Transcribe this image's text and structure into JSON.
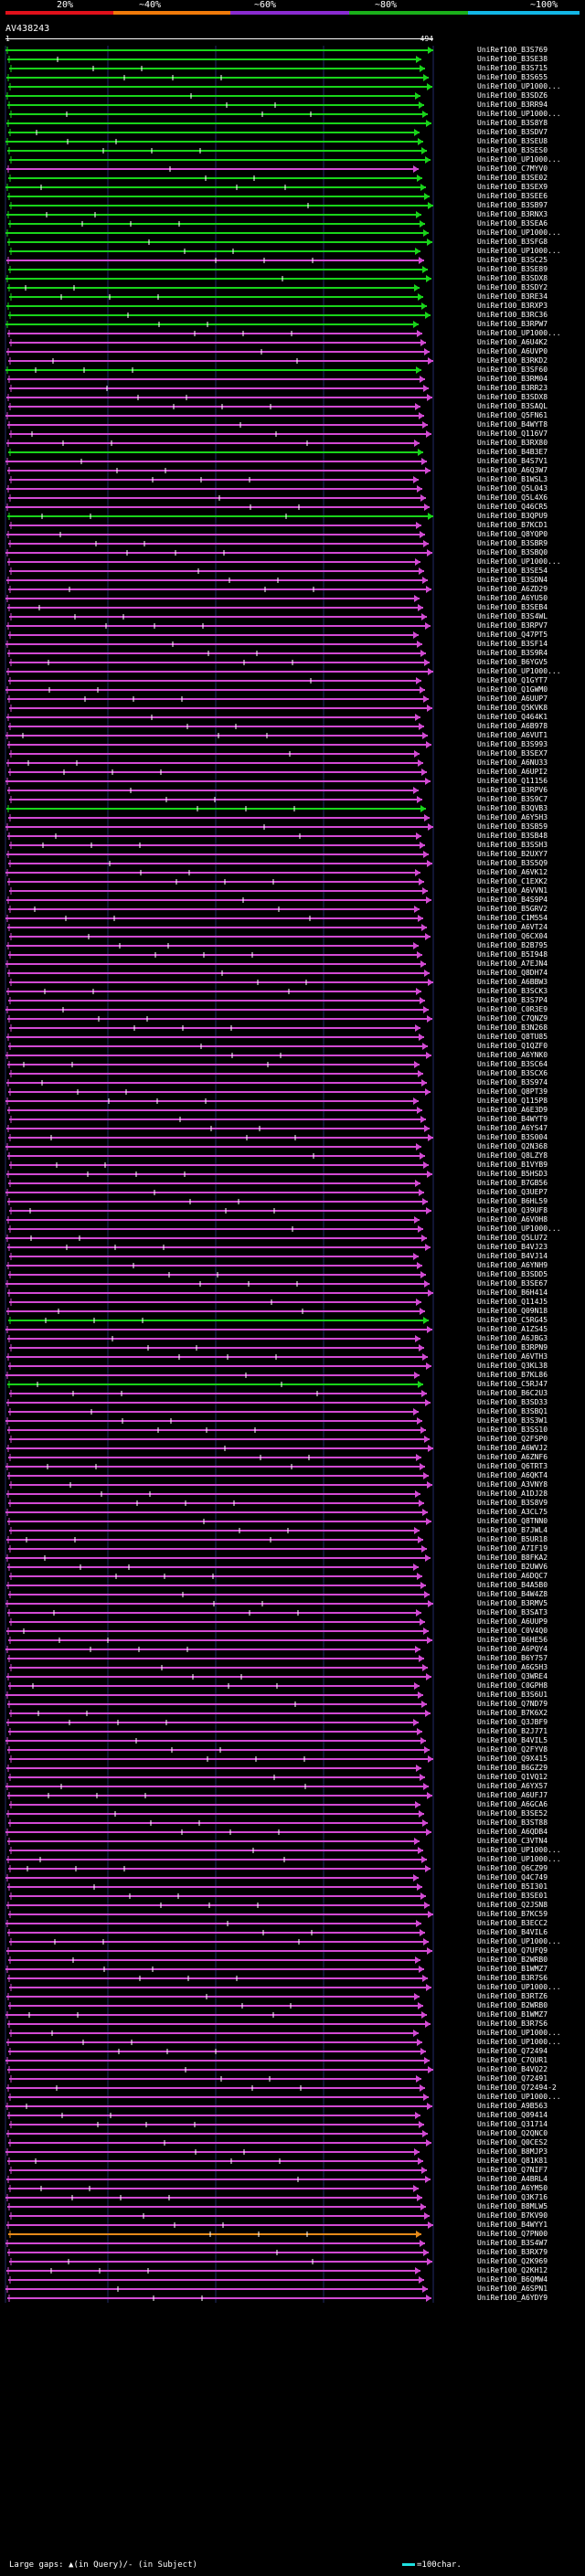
{
  "scale": {
    "labels": [
      "20%",
      "~40%",
      "~60%",
      "~80%",
      "~100%"
    ],
    "colors": [
      "#e0101a",
      "#f07a0a",
      "#8a2bd0",
      "#1ab01a",
      "#12b6e6"
    ]
  },
  "query_id": "AV438243",
  "ruler": {
    "start": "1",
    "end": "494"
  },
  "footer": {
    "legend": "Large gaps: ▲(in Query)/- (in Subject)",
    "scale_note": "=100char."
  },
  "hit_colors": {
    "green": "#19d41a",
    "magenta": "#d24ad3",
    "orange": "#e58a1a"
  },
  "hits": [
    {
      "label": "UniRef100_B3S769",
      "color": "green"
    },
    {
      "label": "UniRef100_B3SE38",
      "color": "green"
    },
    {
      "label": "UniRef100_B3S715",
      "color": "green"
    },
    {
      "label": "UniRef100_B3S655",
      "color": "green"
    },
    {
      "label": "UniRef100_UP1000...",
      "color": "green"
    },
    {
      "label": "UniRef100_B3SDZ6",
      "color": "green"
    },
    {
      "label": "UniRef100_B3RR94",
      "color": "green"
    },
    {
      "label": "UniRef100_UP1000...",
      "color": "green"
    },
    {
      "label": "UniRef100_B3S8Y8",
      "color": "green"
    },
    {
      "label": "UniRef100_B3SDV7",
      "color": "green"
    },
    {
      "label": "UniRef100_B3SEU8",
      "color": "green"
    },
    {
      "label": "UniRef100_B3SES0",
      "color": "green"
    },
    {
      "label": "UniRef100_UP1000...",
      "color": "green"
    },
    {
      "label": "UniRef100_C7MYV0",
      "color": "magenta"
    },
    {
      "label": "UniRef100_B3SE02",
      "color": "green"
    },
    {
      "label": "UniRef100_B3SEX9",
      "color": "green"
    },
    {
      "label": "UniRef100_B3SEE6",
      "color": "green"
    },
    {
      "label": "UniRef100_B3SB97",
      "color": "green"
    },
    {
      "label": "UniRef100_B3RNX3",
      "color": "green"
    },
    {
      "label": "UniRef100_B3SEA6",
      "color": "green"
    },
    {
      "label": "UniRef100_UP1000...",
      "color": "green"
    },
    {
      "label": "UniRef100_B3SFG8",
      "color": "green"
    },
    {
      "label": "UniRef100_UP1000...",
      "color": "green"
    },
    {
      "label": "UniRef100_B3SC25",
      "color": "magenta"
    },
    {
      "label": "UniRef100_B3SE89",
      "color": "green"
    },
    {
      "label": "UniRef100_B3SDX8",
      "color": "green"
    },
    {
      "label": "UniRef100_B3SDY2",
      "color": "green"
    },
    {
      "label": "UniRef100_B3RE34",
      "color": "green"
    },
    {
      "label": "UniRef100_B3RXP3",
      "color": "green"
    },
    {
      "label": "UniRef100_B3RC36",
      "color": "green"
    },
    {
      "label": "UniRef100_B3RPW7",
      "color": "green"
    },
    {
      "label": "UniRef100_UP1000...",
      "color": "magenta"
    },
    {
      "label": "UniRef100_A6U4K2",
      "color": "magenta"
    },
    {
      "label": "UniRef100_A6UVP0",
      "color": "magenta"
    },
    {
      "label": "UniRef100_B3RKD2",
      "color": "magenta"
    },
    {
      "label": "UniRef100_B3SF60",
      "color": "green"
    },
    {
      "label": "UniRef100_B3RM04",
      "color": "magenta"
    },
    {
      "label": "UniRef100_B3RR23",
      "color": "magenta"
    },
    {
      "label": "UniRef100_B3SDX8",
      "color": "magenta"
    },
    {
      "label": "UniRef100_B3SAQL",
      "color": "magenta"
    },
    {
      "label": "UniRef100_Q5FN61",
      "color": "magenta"
    },
    {
      "label": "UniRef100_B4WYT8",
      "color": "magenta"
    },
    {
      "label": "UniRef100_Q116V7",
      "color": "magenta"
    },
    {
      "label": "UniRef100_B3RX80",
      "color": "magenta"
    },
    {
      "label": "UniRef100_B4B3E7",
      "color": "green"
    },
    {
      "label": "UniRef100_B4S7V1",
      "color": "magenta"
    },
    {
      "label": "UniRef100_A6Q3W7",
      "color": "magenta"
    },
    {
      "label": "UniRef100_B1WSL3",
      "color": "magenta"
    },
    {
      "label": "UniRef100_Q5L043",
      "color": "magenta"
    },
    {
      "label": "UniRef100_Q5L4X6",
      "color": "magenta"
    },
    {
      "label": "UniRef100_Q46CR5",
      "color": "magenta"
    },
    {
      "label": "UniRef100_B3QPU9",
      "color": "green"
    },
    {
      "label": "UniRef100_B7KCD1",
      "color": "magenta"
    },
    {
      "label": "UniRef100_Q8YQP0",
      "color": "magenta"
    },
    {
      "label": "UniRef100_B3SBR9",
      "color": "magenta"
    },
    {
      "label": "UniRef100_B3SBQ0",
      "color": "magenta"
    },
    {
      "label": "UniRef100_UP1000...",
      "color": "magenta"
    },
    {
      "label": "UniRef100_B3SE54",
      "color": "magenta"
    },
    {
      "label": "UniRef100_B3SDN4",
      "color": "magenta"
    },
    {
      "label": "UniRef100_A6ZD29",
      "color": "magenta"
    },
    {
      "label": "UniRef100_A6YU50",
      "color": "magenta"
    },
    {
      "label": "UniRef100_B3SEB4",
      "color": "magenta"
    },
    {
      "label": "UniRef100_B3S4WL",
      "color": "magenta"
    },
    {
      "label": "UniRef100_B3RPV7",
      "color": "magenta"
    },
    {
      "label": "UniRef100_Q47PT5",
      "color": "magenta"
    },
    {
      "label": "UniRef100_B3SF14",
      "color": "magenta"
    },
    {
      "label": "UniRef100_B3S9R4",
      "color": "magenta"
    },
    {
      "label": "UniRef100_B6YGV5",
      "color": "magenta"
    },
    {
      "label": "UniRef100_UP1000...",
      "color": "magenta"
    },
    {
      "label": "UniRef100_Q1GYT7",
      "color": "magenta"
    },
    {
      "label": "UniRef100_Q1GWM0",
      "color": "magenta"
    },
    {
      "label": "UniRef100_A6UUP7",
      "color": "magenta"
    },
    {
      "label": "UniRef100_Q5KVK8",
      "color": "magenta"
    },
    {
      "label": "UniRef100_Q464K1",
      "color": "magenta"
    },
    {
      "label": "UniRef100_A6B978",
      "color": "magenta"
    },
    {
      "label": "UniRef100_A6VUT1",
      "color": "magenta"
    },
    {
      "label": "UniRef100_B3S993",
      "color": "magenta"
    },
    {
      "label": "UniRef100_B3SEX7",
      "color": "magenta"
    },
    {
      "label": "UniRef100_A6NU33",
      "color": "magenta"
    },
    {
      "label": "UniRef100_A6UPI2",
      "color": "magenta"
    },
    {
      "label": "UniRef100_Q11156",
      "color": "magenta"
    },
    {
      "label": "UniRef100_B3RPV6",
      "color": "magenta"
    },
    {
      "label": "UniRef100_B3S9C7",
      "color": "magenta"
    },
    {
      "label": "UniRef100_B3QVB3",
      "color": "green"
    },
    {
      "label": "UniRef100_A6Y5H3",
      "color": "magenta"
    },
    {
      "label": "UniRef100_B3SB59",
      "color": "magenta"
    },
    {
      "label": "UniRef100_B3SB48",
      "color": "magenta"
    },
    {
      "label": "UniRef100_B3SSH3",
      "color": "magenta"
    },
    {
      "label": "UniRef100_B2UXY7",
      "color": "magenta"
    },
    {
      "label": "UniRef100_B3S5Q9",
      "color": "magenta"
    },
    {
      "label": "UniRef100_A6VK12",
      "color": "magenta"
    },
    {
      "label": "UniRef100_C1EXK2",
      "color": "magenta"
    },
    {
      "label": "UniRef100_A6VVN1",
      "color": "magenta"
    },
    {
      "label": "UniRef100_B4S9P4",
      "color": "magenta"
    },
    {
      "label": "UniRef100_B5GRV2",
      "color": "magenta"
    },
    {
      "label": "UniRef100_C1M554",
      "color": "magenta"
    },
    {
      "label": "UniRef100_A6VT24",
      "color": "magenta"
    },
    {
      "label": "UniRef100_Q6CX04",
      "color": "magenta"
    },
    {
      "label": "UniRef100_B2B795",
      "color": "magenta"
    },
    {
      "label": "UniRef100_B5I948",
      "color": "magenta"
    },
    {
      "label": "UniRef100_A7EJN4",
      "color": "magenta"
    },
    {
      "label": "UniRef100_Q8DH74",
      "color": "magenta"
    },
    {
      "label": "UniRef100_A6BBW3",
      "color": "magenta"
    },
    {
      "label": "UniRef100_B3SCK3",
      "color": "magenta"
    },
    {
      "label": "UniRef100_B3S7P4",
      "color": "magenta"
    },
    {
      "label": "UniRef100_C0R3E9",
      "color": "magenta"
    },
    {
      "label": "UniRef100_C7QNZ9",
      "color": "magenta"
    },
    {
      "label": "UniRef100_B3N268",
      "color": "magenta"
    },
    {
      "label": "UniRef100_Q8TU85",
      "color": "magenta"
    },
    {
      "label": "UniRef100_Q1QZF0",
      "color": "magenta"
    },
    {
      "label": "UniRef100_A6YNK0",
      "color": "magenta"
    },
    {
      "label": "UniRef100_B3SC64",
      "color": "magenta"
    },
    {
      "label": "UniRef100_B3SCX6",
      "color": "magenta"
    },
    {
      "label": "UniRef100_B3S974",
      "color": "magenta"
    },
    {
      "label": "UniRef100_Q8PT39",
      "color": "magenta"
    },
    {
      "label": "UniRef100_Q115P8",
      "color": "magenta"
    },
    {
      "label": "UniRef100_A6E3D9",
      "color": "magenta"
    },
    {
      "label": "UniRef100_B4WYT9",
      "color": "magenta"
    },
    {
      "label": "UniRef100_A6YS47",
      "color": "magenta"
    },
    {
      "label": "UniRef100_B3S004",
      "color": "magenta"
    },
    {
      "label": "UniRef100_Q2N368",
      "color": "magenta"
    },
    {
      "label": "UniRef100_Q8LZY8",
      "color": "magenta"
    },
    {
      "label": "UniRef100_B1VYB9",
      "color": "magenta"
    },
    {
      "label": "UniRef100_B5HSD3",
      "color": "magenta"
    },
    {
      "label": "UniRef100_B7GB56",
      "color": "magenta"
    },
    {
      "label": "UniRef100_Q3UEP7",
      "color": "magenta"
    },
    {
      "label": "UniRef100_B6HL59",
      "color": "magenta"
    },
    {
      "label": "UniRef100_Q39UF8",
      "color": "magenta"
    },
    {
      "label": "UniRef100_A6VOH8",
      "color": "magenta"
    },
    {
      "label": "UniRef100_UP1000...",
      "color": "magenta"
    },
    {
      "label": "UniRef100_Q5LU72",
      "color": "magenta"
    },
    {
      "label": "UniRef100_B4VJ23",
      "color": "magenta"
    },
    {
      "label": "UniRef100_B4VJ14",
      "color": "magenta"
    },
    {
      "label": "UniRef100_A6YNH9",
      "color": "magenta"
    },
    {
      "label": "UniRef100_B3SDD5",
      "color": "magenta"
    },
    {
      "label": "UniRef100_B3SE67",
      "color": "magenta"
    },
    {
      "label": "UniRef100_B6H414",
      "color": "magenta"
    },
    {
      "label": "UniRef100_Q114J5",
      "color": "magenta"
    },
    {
      "label": "UniRef100_Q09N18",
      "color": "magenta"
    },
    {
      "label": "UniRef100_C5RG45",
      "color": "green"
    },
    {
      "label": "UniRef100_A1ZS45",
      "color": "magenta"
    },
    {
      "label": "UniRef100_A6JBG3",
      "color": "magenta"
    },
    {
      "label": "UniRef100_B3RPN9",
      "color": "magenta"
    },
    {
      "label": "UniRef100_A6VTH3",
      "color": "magenta"
    },
    {
      "label": "UniRef100_Q3KL38",
      "color": "magenta"
    },
    {
      "label": "UniRef100_B7KL86",
      "color": "magenta"
    },
    {
      "label": "UniRef100_C5RJ47",
      "color": "green"
    },
    {
      "label": "UniRef100_B6C2U3",
      "color": "magenta"
    },
    {
      "label": "UniRef100_B3SD33",
      "color": "magenta"
    },
    {
      "label": "UniRef100_B3SBQ1",
      "color": "magenta"
    },
    {
      "label": "UniRef100_B3S3W1",
      "color": "magenta"
    },
    {
      "label": "UniRef100_B3SS10",
      "color": "magenta"
    },
    {
      "label": "UniRef100_Q2FSP0",
      "color": "magenta"
    },
    {
      "label": "UniRef100_A6WVJ2",
      "color": "magenta"
    },
    {
      "label": "UniRef100_A6ZNF6",
      "color": "magenta"
    },
    {
      "label": "UniRef100_Q6TRT3",
      "color": "magenta"
    },
    {
      "label": "UniRef100_A6QKT4",
      "color": "magenta"
    },
    {
      "label": "UniRef100_A3VNY8",
      "color": "magenta"
    },
    {
      "label": "UniRef100_A1DJ28",
      "color": "magenta"
    },
    {
      "label": "UniRef100_B3S8V9",
      "color": "magenta"
    },
    {
      "label": "UniRef100_A3CL75",
      "color": "magenta"
    },
    {
      "label": "UniRef100_Q8TNN0",
      "color": "magenta"
    },
    {
      "label": "UniRef100_B7JWL4",
      "color": "magenta"
    },
    {
      "label": "UniRef100_B5UR18",
      "color": "magenta"
    },
    {
      "label": "UniRef100_A7IF19",
      "color": "magenta"
    },
    {
      "label": "UniRef100_B8FKA2",
      "color": "magenta"
    },
    {
      "label": "UniRef100_B2UWV6",
      "color": "magenta"
    },
    {
      "label": "UniRef100_A6DQC7",
      "color": "magenta"
    },
    {
      "label": "UniRef100_B4A5B0",
      "color": "magenta"
    },
    {
      "label": "UniRef100_B4W4Z8",
      "color": "magenta"
    },
    {
      "label": "UniRef100_B3RMV5",
      "color": "magenta"
    },
    {
      "label": "UniRef100_B3SAT3",
      "color": "magenta"
    },
    {
      "label": "UniRef100_A6UUP9",
      "color": "magenta"
    },
    {
      "label": "UniRef100_C0V4Q0",
      "color": "magenta"
    },
    {
      "label": "UniRef100_B6HE56",
      "color": "magenta"
    },
    {
      "label": "UniRef100_A6PQY4",
      "color": "magenta"
    },
    {
      "label": "UniRef100_B6Y757",
      "color": "magenta"
    },
    {
      "label": "UniRef100_A6G5H3",
      "color": "magenta"
    },
    {
      "label": "UniRef100_Q3WRE4",
      "color": "magenta"
    },
    {
      "label": "UniRef100_C0GPH8",
      "color": "magenta"
    },
    {
      "label": "UniRef100_B3S6U1",
      "color": "magenta"
    },
    {
      "label": "UniRef100_Q7ND79",
      "color": "magenta"
    },
    {
      "label": "UniRef100_B7K6X2",
      "color": "magenta"
    },
    {
      "label": "UniRef100_Q3JBF9",
      "color": "magenta"
    },
    {
      "label": "UniRef100_B2J771",
      "color": "magenta"
    },
    {
      "label": "UniRef100_B4VIL5",
      "color": "magenta"
    },
    {
      "label": "UniRef100_Q2FYV8",
      "color": "magenta"
    },
    {
      "label": "UniRef100_Q9X415",
      "color": "magenta"
    },
    {
      "label": "UniRef100_B6GZ29",
      "color": "magenta"
    },
    {
      "label": "UniRef100_Q1VQ12",
      "color": "magenta"
    },
    {
      "label": "UniRef100_A6YX57",
      "color": "magenta"
    },
    {
      "label": "UniRef100_A6UFJ7",
      "color": "magenta"
    },
    {
      "label": "UniRef100_A6GCA6",
      "color": "magenta"
    },
    {
      "label": "UniRef100_B3SE52",
      "color": "magenta"
    },
    {
      "label": "UniRef100_B3ST88",
      "color": "magenta"
    },
    {
      "label": "UniRef100_A6QDB4",
      "color": "magenta"
    },
    {
      "label": "UniRef100_C3VTN4",
      "color": "magenta"
    },
    {
      "label": "UniRef100_UP1000...",
      "color": "magenta"
    },
    {
      "label": "UniRef100_UP1000...",
      "color": "magenta"
    },
    {
      "label": "UniRef100_Q6CZ99",
      "color": "magenta"
    },
    {
      "label": "UniRef100_Q4C749",
      "color": "magenta"
    },
    {
      "label": "UniRef100_B5I301",
      "color": "magenta"
    },
    {
      "label": "UniRef100_B3SE01",
      "color": "magenta"
    },
    {
      "label": "UniRef100_Q2JSN8",
      "color": "magenta"
    },
    {
      "label": "UniRef100_B7KC59",
      "color": "magenta"
    },
    {
      "label": "UniRef100_B3ECC2",
      "color": "magenta"
    },
    {
      "label": "UniRef100_B4VIL6",
      "color": "magenta"
    },
    {
      "label": "UniRef100_UP1000...",
      "color": "magenta"
    },
    {
      "label": "UniRef100_Q7UFQ9",
      "color": "magenta"
    },
    {
      "label": "UniRef100_B2WRB0",
      "color": "magenta"
    },
    {
      "label": "UniRef100_B1WMZ7",
      "color": "magenta"
    },
    {
      "label": "UniRef100_B3R7S6",
      "color": "magenta"
    },
    {
      "label": "UniRef100_UP1000...",
      "color": "magenta"
    },
    {
      "label": "UniRef100_B3RTZ6",
      "color": "magenta"
    },
    {
      "label": "UniRef100_B2WRB0",
      "color": "magenta"
    },
    {
      "label": "UniRef100_B1WMZ7",
      "color": "magenta"
    },
    {
      "label": "UniRef100_B3R7S6",
      "color": "magenta"
    },
    {
      "label": "UniRef100_UP1000...",
      "color": "magenta"
    },
    {
      "label": "UniRef100_UP1000...",
      "color": "magenta"
    },
    {
      "label": "UniRef100_Q72494",
      "color": "magenta"
    },
    {
      "label": "UniRef100_C7QUR1",
      "color": "magenta"
    },
    {
      "label": "UniRef100_B4VQ22",
      "color": "magenta"
    },
    {
      "label": "UniRef100_Q72491",
      "color": "magenta"
    },
    {
      "label": "UniRef100_Q72494-2",
      "color": "magenta"
    },
    {
      "label": "UniRef100_UP1000...",
      "color": "magenta"
    },
    {
      "label": "UniRef100_A9B563",
      "color": "magenta"
    },
    {
      "label": "UniRef100_Q09414",
      "color": "magenta"
    },
    {
      "label": "UniRef100_Q31714",
      "color": "magenta"
    },
    {
      "label": "UniRef100_Q2QNC0",
      "color": "magenta"
    },
    {
      "label": "UniRef100_Q0CES2",
      "color": "magenta"
    },
    {
      "label": "UniRef100_B8MJP3",
      "color": "magenta"
    },
    {
      "label": "UniRef100_Q81K81",
      "color": "magenta"
    },
    {
      "label": "UniRef100_Q7NIF7",
      "color": "magenta"
    },
    {
      "label": "UniRef100_A4BRL4",
      "color": "magenta"
    },
    {
      "label": "UniRef100_A6YM50",
      "color": "magenta"
    },
    {
      "label": "UniRef100_Q3K716",
      "color": "magenta"
    },
    {
      "label": "UniRef100_B8MLW5",
      "color": "magenta"
    },
    {
      "label": "UniRef100_B7KV90",
      "color": "magenta"
    },
    {
      "label": "UniRef100_B4WYY1",
      "color": "magenta"
    },
    {
      "label": "UniRef100_Q7PN00",
      "color": "orange"
    },
    {
      "label": "UniRef100_B3S4W7",
      "color": "magenta"
    },
    {
      "label": "UniRef100_B3RX79",
      "color": "magenta"
    },
    {
      "label": "UniRef100_Q2K969",
      "color": "magenta"
    },
    {
      "label": "UniRef100_Q2KH12",
      "color": "magenta"
    },
    {
      "label": "UniRef100_B6QMW4",
      "color": "magenta"
    },
    {
      "label": "UniRef100_A6SPN1",
      "color": "magenta"
    },
    {
      "label": "UniRef100_A6YDY9",
      "color": "magenta"
    }
  ]
}
